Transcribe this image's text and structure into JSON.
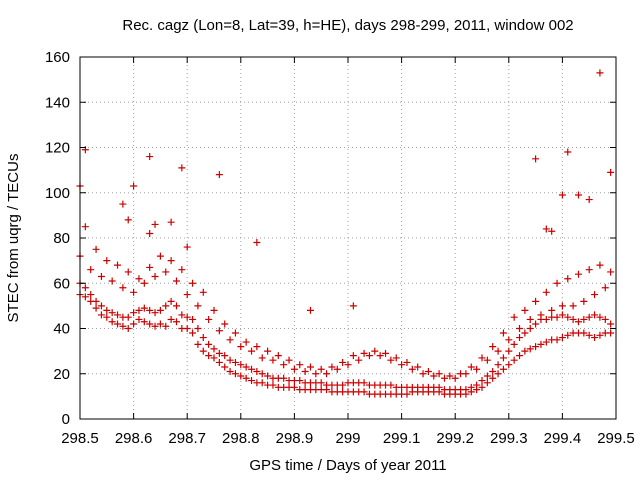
{
  "chart_data": {
    "type": "scatter",
    "title": "Rec. cagz (Lon=8, Lat=39, h=HE), days 298-299, 2011, window 002",
    "xlabel": "GPS time / Days of year 2011",
    "ylabel": "STEC from uqrg / TECUs",
    "xlim": [
      298.5,
      299.5
    ],
    "ylim": [
      0,
      160
    ],
    "xticks": [
      298.5,
      298.6,
      298.7,
      298.8,
      298.9,
      299.0,
      299.1,
      299.2,
      299.3,
      299.4,
      299.5
    ],
    "xtick_labels": [
      "298.5",
      "298.6",
      "298.7",
      "298.8",
      "298.9",
      "299",
      "299.1",
      "299.2",
      "299.3",
      "299.4",
      "299.5"
    ],
    "yticks": [
      0,
      20,
      40,
      60,
      80,
      100,
      120,
      140,
      160
    ],
    "ytick_labels": [
      "0",
      "20",
      "40",
      "60",
      "80",
      "100",
      "120",
      "140",
      "160"
    ],
    "grid": true,
    "marker": "+",
    "series": [
      {
        "name": "STEC",
        "color": "#cc0000",
        "x": [
          298.5,
          298.51,
          298.52,
          298.53,
          298.54,
          298.55,
          298.56,
          298.57,
          298.58,
          298.59,
          298.6,
          298.61,
          298.62,
          298.63,
          298.64,
          298.65,
          298.66,
          298.67,
          298.68,
          298.69,
          298.7,
          298.71,
          298.72,
          298.73,
          298.74,
          298.75,
          298.76,
          298.77,
          298.78,
          298.79,
          298.8,
          298.81,
          298.82,
          298.83,
          298.84,
          298.85,
          298.86,
          298.87,
          298.88,
          298.89,
          298.9,
          298.91,
          298.92,
          298.93,
          298.94,
          298.95,
          298.96,
          298.97,
          298.98,
          298.99,
          299.0,
          299.01,
          299.02,
          299.03,
          299.04,
          299.05,
          299.06,
          299.07,
          299.08,
          299.09,
          299.1,
          299.11,
          299.12,
          299.13,
          299.14,
          299.15,
          299.16,
          299.17,
          299.18,
          299.19,
          299.2,
          299.21,
          299.22,
          299.23,
          299.24,
          299.25,
          299.26,
          299.27,
          299.28,
          299.29,
          299.3,
          299.31,
          299.32,
          299.33,
          299.34,
          299.35,
          299.36,
          299.37,
          299.38,
          299.39,
          299.4,
          299.41,
          299.42,
          299.43,
          299.44,
          299.45,
          299.46,
          299.47,
          299.48,
          299.49,
          298.5,
          298.51,
          298.52,
          298.53,
          298.54,
          298.55,
          298.56,
          298.57,
          298.58,
          298.59,
          298.6,
          298.61,
          298.62,
          298.63,
          298.64,
          298.65,
          298.66,
          298.67,
          298.68,
          298.69,
          298.7,
          298.71,
          298.72,
          298.73,
          298.74,
          298.75,
          298.76,
          298.77,
          298.78,
          298.79,
          298.8,
          298.81,
          298.82,
          298.83,
          298.84,
          298.85,
          298.86,
          298.87,
          298.88,
          298.89,
          298.9,
          298.91,
          298.92,
          298.93,
          298.94,
          298.95,
          298.96,
          298.97,
          298.98,
          298.99,
          299.0,
          299.01,
          299.02,
          299.03,
          299.04,
          299.05,
          299.06,
          299.07,
          299.08,
          299.09,
          299.1,
          299.11,
          299.12,
          299.13,
          299.14,
          299.15,
          299.16,
          299.17,
          299.18,
          299.19,
          299.2,
          299.21,
          299.22,
          299.23,
          299.24,
          299.25,
          299.26,
          299.27,
          299.28,
          299.29,
          299.3,
          299.31,
          299.32,
          299.33,
          299.34,
          299.35,
          299.36,
          299.37,
          299.38,
          299.39,
          299.4,
          299.41,
          299.42,
          299.43,
          299.44,
          299.45,
          299.46,
          299.47,
          299.48,
          299.49,
          298.5,
          298.52,
          298.54,
          298.56,
          298.58,
          298.6,
          298.62,
          298.64,
          298.66,
          298.68,
          298.7,
          298.72,
          298.74,
          298.76,
          298.78,
          298.8,
          298.82,
          298.84,
          298.86,
          298.88,
          298.9,
          298.92,
          298.94,
          298.96,
          298.98,
          299.0,
          299.02,
          299.04,
          299.06,
          299.08,
          299.1,
          299.12,
          299.14,
          299.16,
          299.18,
          299.2,
          299.22,
          299.24,
          299.26,
          299.28,
          299.3,
          299.32,
          299.34,
          299.36,
          299.38,
          299.4,
          299.42,
          299.44,
          299.46,
          299.48,
          298.51,
          298.53,
          298.55,
          298.57,
          298.59,
          298.61,
          298.63,
          298.65,
          298.67,
          298.69,
          298.71,
          298.73,
          298.75,
          298.77,
          298.79,
          298.81,
          298.83,
          298.85,
          298.87,
          298.89,
          298.91,
          298.93,
          298.95,
          298.97,
          298.99,
          299.01,
          299.03,
          299.05,
          299.07,
          299.09,
          299.11,
          299.13,
          299.15,
          299.17,
          299.19,
          299.21,
          299.23,
          299.25,
          299.27,
          299.29,
          299.31,
          299.33,
          299.35,
          299.37,
          299.39,
          299.41,
          299.43,
          299.45,
          299.47,
          299.49,
          298.5,
          298.51,
          298.6,
          298.63,
          298.63,
          298.69,
          298.7,
          298.76,
          298.83,
          298.93,
          299.01,
          299.35,
          299.41,
          299.47,
          299.49,
          299.4,
          299.45,
          299.43,
          299.38,
          299.37,
          298.59,
          298.58,
          298.64,
          298.67
        ],
        "y": [
          55,
          54,
          52,
          49,
          46,
          45,
          43,
          42,
          41,
          40,
          42,
          44,
          43,
          42,
          41,
          42,
          41,
          44,
          43,
          40,
          40,
          38,
          33,
          30,
          28,
          27,
          25,
          23,
          21,
          20,
          19,
          18,
          17,
          16,
          16,
          15,
          15,
          14,
          14,
          14,
          14,
          13,
          13,
          13,
          13,
          13,
          13,
          12,
          12,
          12,
          12,
          12,
          12,
          12,
          11,
          11,
          11,
          11,
          11,
          11,
          11,
          11,
          12,
          12,
          12,
          12,
          12,
          12,
          11,
          11,
          11,
          11,
          11,
          12,
          13,
          14,
          16,
          18,
          20,
          22,
          24,
          26,
          28,
          30,
          31,
          32,
          33,
          34,
          35,
          35,
          36,
          37,
          38,
          38,
          38,
          37,
          36,
          37,
          38,
          38,
          60,
          58,
          55,
          52,
          50,
          48,
          47,
          46,
          45,
          45,
          47,
          48,
          49,
          48,
          47,
          48,
          50,
          52,
          50,
          46,
          45,
          44,
          40,
          36,
          33,
          31,
          29,
          28,
          26,
          25,
          24,
          23,
          22,
          21,
          20,
          19,
          18,
          18,
          18,
          17,
          17,
          17,
          16,
          16,
          16,
          16,
          15,
          15,
          15,
          15,
          16,
          16,
          16,
          16,
          15,
          15,
          15,
          15,
          15,
          14,
          14,
          14,
          14,
          14,
          14,
          14,
          14,
          14,
          13,
          13,
          13,
          13,
          13,
          14,
          15,
          17,
          19,
          21,
          24,
          27,
          30,
          33,
          36,
          38,
          40,
          42,
          44,
          44,
          45,
          45,
          46,
          45,
          44,
          43,
          44,
          45,
          46,
          45,
          44,
          42,
          72,
          66,
          63,
          61,
          58,
          56,
          60,
          63,
          65,
          61,
          55,
          50,
          44,
          39,
          35,
          32,
          30,
          27,
          26,
          24,
          22,
          21,
          20,
          20,
          22,
          24,
          26,
          28,
          28,
          26,
          24,
          22,
          20,
          19,
          18,
          18,
          20,
          22,
          26,
          30,
          35,
          40,
          44,
          46,
          48,
          50,
          50,
          52,
          55,
          58,
          85,
          75,
          70,
          68,
          65,
          62,
          67,
          72,
          70,
          66,
          60,
          56,
          48,
          42,
          38,
          34,
          32,
          30,
          28,
          26,
          24,
          23,
          22,
          23,
          25,
          28,
          29,
          30,
          29,
          27,
          25,
          23,
          21,
          20,
          19,
          20,
          23,
          27,
          32,
          38,
          45,
          48,
          52,
          56,
          60,
          62,
          64,
          66,
          68,
          65,
          103,
          119,
          103,
          82,
          116,
          111,
          76,
          108,
          78,
          48,
          50,
          115,
          118,
          153,
          109,
          99,
          97,
          99,
          83,
          84,
          88,
          95,
          86,
          87
        ]
      }
    ]
  }
}
